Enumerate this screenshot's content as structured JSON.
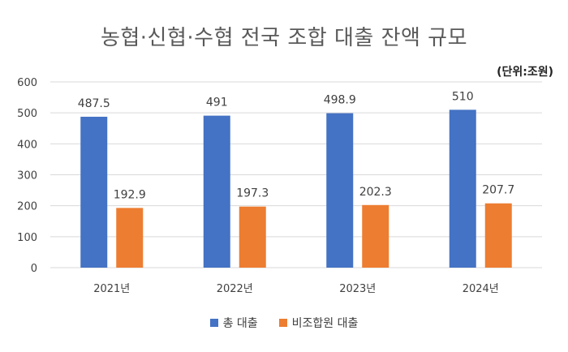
{
  "chart_data": {
    "type": "bar",
    "title": "농협·신협·수협 전국 조합 대출 잔액 규모",
    "unit_note": "(단위:조원)",
    "categories": [
      "2021년",
      "2022년",
      "2023년",
      "2024년"
    ],
    "series": [
      {
        "name": "총 대출",
        "values": [
          487.5,
          491,
          498.9,
          510
        ],
        "labels": [
          "487.5",
          "491",
          "498.9",
          "510"
        ],
        "color": "#4472C4"
      },
      {
        "name": "비조합원 대출",
        "values": [
          192.9,
          197.3,
          202.3,
          207.7
        ],
        "labels": [
          "192.9",
          "197.3",
          "202.3",
          "207.7"
        ],
        "color": "#ED7D31"
      }
    ],
    "ylim": [
      0,
      600
    ],
    "yticks": [
      "0",
      "100",
      "200",
      "300",
      "400",
      "500",
      "600"
    ],
    "grid": true,
    "legend_position": "bottom"
  }
}
